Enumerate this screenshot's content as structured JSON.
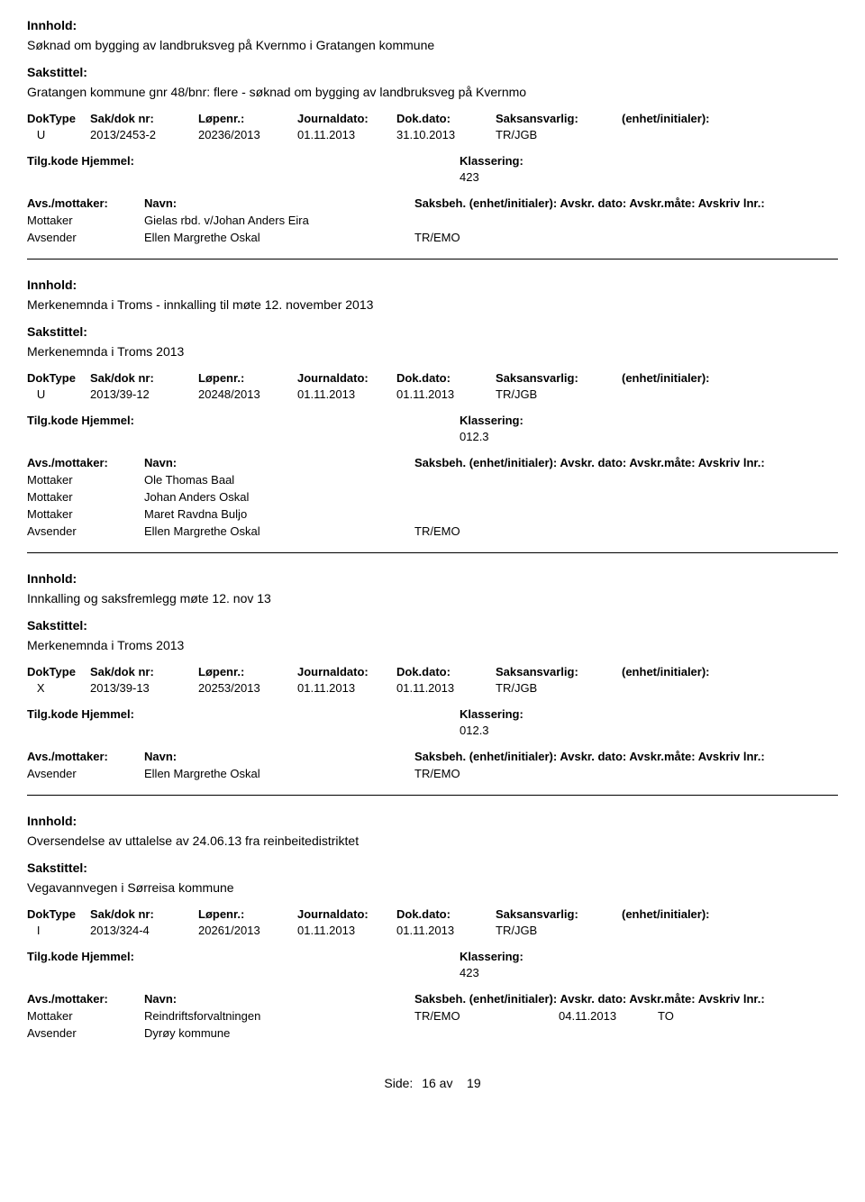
{
  "labels": {
    "innhold": "Innhold:",
    "sakstittel": "Sakstittel:",
    "doktype": "DokType",
    "sakdok": "Sak/dok nr:",
    "lopenr": "Løpenr.:",
    "journaldato": "Journaldato:",
    "dokdato": "Dok.dato:",
    "saksansvarlig": "Saksansvarlig:",
    "enhet": "(enhet/initialer):",
    "tilgkode": "Tilg.kode",
    "hjemmel": "Hjemmel:",
    "klassering": "Klassering:",
    "avsmottaker": "Avs./mottaker:",
    "navn": "Navn:",
    "saksbeh": "Saksbeh.",
    "enhet2": "(enhet/initialer):",
    "avskrdato": "Avskr. dato:",
    "avskrmate": "Avskr.måte:",
    "avskrivlnr": "Avskriv lnr.:",
    "mottaker": "Mottaker",
    "avsender": "Avsender",
    "side": "Side:",
    "av": "av"
  },
  "records": [
    {
      "innhold": "Søknad om bygging av landbruksveg på Kvernmo i Gratangen kommune",
      "sakstittel": "Gratangen kommune gnr 48/bnr: flere - søknad om bygging av landbruksveg på Kvernmo",
      "doktype": "U",
      "sakdok": "2013/2453-2",
      "lopenr": "20236/2013",
      "journaldato": "01.11.2013",
      "dokdato": "31.10.2013",
      "saksansvarlig": "TR/JGB",
      "klassering": "423",
      "parties": [
        {
          "role": "Mottaker",
          "name": "Gielas rbd. v/Johan Anders Eira",
          "code": "",
          "date": "",
          "mate": ""
        },
        {
          "role": "Avsender",
          "name": "Ellen Margrethe Oskal",
          "code": "TR/EMO",
          "date": "",
          "mate": ""
        }
      ]
    },
    {
      "innhold": "Merkenemnda i Troms - innkalling til møte 12. november 2013",
      "sakstittel": "Merkenemnda i Troms 2013",
      "doktype": "U",
      "sakdok": "2013/39-12",
      "lopenr": "20248/2013",
      "journaldato": "01.11.2013",
      "dokdato": "01.11.2013",
      "saksansvarlig": "TR/JGB",
      "klassering": "012.3",
      "parties": [
        {
          "role": "Mottaker",
          "name": "Ole Thomas Baal",
          "code": "",
          "date": "",
          "mate": ""
        },
        {
          "role": "Mottaker",
          "name": "Johan Anders Oskal",
          "code": "",
          "date": "",
          "mate": ""
        },
        {
          "role": "Mottaker",
          "name": "Maret Ravdna Buljo",
          "code": "",
          "date": "",
          "mate": ""
        },
        {
          "role": "Avsender",
          "name": "Ellen Margrethe Oskal",
          "code": "TR/EMO",
          "date": "",
          "mate": ""
        }
      ]
    },
    {
      "innhold": "Innkalling og saksfremlegg møte 12. nov 13",
      "sakstittel": "Merkenemnda i Troms 2013",
      "doktype": "X",
      "sakdok": "2013/39-13",
      "lopenr": "20253/2013",
      "journaldato": "01.11.2013",
      "dokdato": "01.11.2013",
      "saksansvarlig": "TR/JGB",
      "klassering": "012.3",
      "parties": [
        {
          "role": "Avsender",
          "name": "Ellen Margrethe Oskal",
          "code": "TR/EMO",
          "date": "",
          "mate": ""
        }
      ]
    },
    {
      "innhold": "Oversendelse av uttalelse av 24.06.13 fra reinbeitedistriktet",
      "sakstittel": "Vegavannvegen i Sørreisa kommune",
      "doktype": "I",
      "sakdok": "2013/324-4",
      "lopenr": "20261/2013",
      "journaldato": "01.11.2013",
      "dokdato": "01.11.2013",
      "saksansvarlig": "TR/JGB",
      "klassering": "423",
      "parties": [
        {
          "role": "Mottaker",
          "name": "Reindriftsforvaltningen",
          "code": "TR/EMO",
          "date": "04.11.2013",
          "mate": "TO"
        },
        {
          "role": "Avsender",
          "name": "Dyrøy kommune",
          "code": "",
          "date": "",
          "mate": ""
        }
      ]
    }
  ],
  "footer": {
    "page": "16",
    "total": "19"
  }
}
